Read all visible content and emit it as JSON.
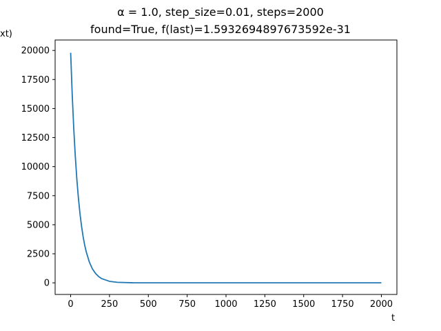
{
  "chart_data": {
    "type": "line",
    "title": "α = 1.0, step_size=0.01, steps=2000",
    "subtitle": "found=True, f(last)=1.5932694897673592e-31",
    "xlabel": "t",
    "ylabel": "xt)",
    "xlim": [
      -100,
      2100
    ],
    "ylim": [
      -1000,
      20900
    ],
    "x_ticks": [
      0,
      250,
      500,
      750,
      1000,
      1250,
      1500,
      1750,
      2000
    ],
    "y_ticks": [
      0,
      2500,
      5000,
      7500,
      10000,
      12500,
      15000,
      17500,
      20000
    ],
    "grid": false,
    "series": [
      {
        "color": "#1f77b4",
        "x": [
          0,
          10,
          20,
          30,
          40,
          50,
          60,
          70,
          80,
          90,
          100,
          120,
          140,
          160,
          180,
          200,
          250,
          300,
          400,
          500,
          750,
          1000,
          1250,
          1500,
          1750,
          2000
        ],
        "y": [
          19800,
          16200,
          13260,
          10860,
          8880,
          7280,
          5960,
          4880,
          3990,
          3270,
          2680,
          1800,
          1200,
          810,
          540,
          360,
          130,
          48,
          6,
          1,
          0,
          0,
          0,
          0,
          0,
          0
        ]
      }
    ]
  }
}
